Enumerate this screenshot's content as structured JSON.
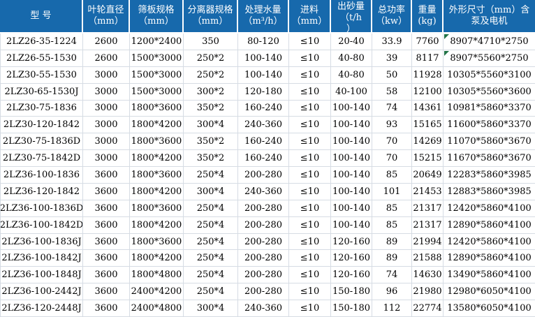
{
  "table": {
    "header_bg": "#1769AC",
    "header_text_color": "#FFFFFF",
    "gridline_color": "#D6DCE4",
    "note_marker_color": "#217346",
    "note_marker_rows": [
      0,
      1
    ],
    "columns": [
      {
        "id": "model",
        "label": "型  号",
        "unit": ""
      },
      {
        "id": "impeller",
        "label": "叶轮直径",
        "unit": "（mm）"
      },
      {
        "id": "screen",
        "label": "筛板规格",
        "unit": "（mm）"
      },
      {
        "id": "separator",
        "label": "分离器规格",
        "unit": "（mm）"
      },
      {
        "id": "water",
        "label": "处理水量",
        "unit": "（m³/h）"
      },
      {
        "id": "feed",
        "label": "进料",
        "unit": "（mm）"
      },
      {
        "id": "sand",
        "label": "出砂量",
        "unit": "（t/h",
        "unit2": "）"
      },
      {
        "id": "power",
        "label": "总功率",
        "unit": "（kw）"
      },
      {
        "id": "weight",
        "label": "重量",
        "unit": "(kg)"
      },
      {
        "id": "dims",
        "label": "外形尺寸（mm）含",
        "unit": "泵及电机"
      }
    ],
    "rows": [
      [
        "2LZ26-35-1224",
        "2600",
        "1200*2400",
        "350",
        "80-120",
        "≤10",
        "20-40",
        "33.9",
        "7760",
        "8907*4710*2750"
      ],
      [
        "2LZ26-55-1530",
        "2600",
        "1500*3000",
        "250*2",
        "100-140",
        "≤10",
        "40-80",
        "39",
        "8117",
        "8907*5560*2750"
      ],
      [
        "2LZ30-55-1530",
        "3000",
        "1500*3000",
        "250*2",
        "100-140",
        "≤10",
        "40-80",
        "50",
        "11928",
        "10305*5560*3100"
      ],
      [
        "2LZ30-65-1530J",
        "3000",
        "1500*3000",
        "300*2",
        "120-180",
        "≤10",
        "40-100",
        "58",
        "12100",
        "10305*5560*3600"
      ],
      [
        "2LZ30-75-1836",
        "3000",
        "1800*3600",
        "350*2",
        "160-240",
        "≤10",
        "100-140",
        "74",
        "14361",
        "10981*5860*3370"
      ],
      [
        "2LZ30-120-1842",
        "3000",
        "1800*4200",
        "300*4",
        "240-360",
        "≤10",
        "100-140",
        "93",
        "15165",
        "11600*5860*3370"
      ],
      [
        "2LZ30-75-1836D",
        "3000",
        "1800*3600",
        "350*2",
        "160-240",
        "≤10",
        "100-140",
        "70",
        "14269",
        "11070*5860*3670"
      ],
      [
        "2LZ30-75-1842D",
        "3000",
        "1800*4200",
        "350*2",
        "160-240",
        "≤10",
        "100-140",
        "70",
        "15215",
        "11670*5860*3670"
      ],
      [
        "2LZ36-100-1836",
        "3600",
        "1800*3600",
        "250*4",
        "200-280",
        "≤10",
        "100-140",
        "85",
        "20649",
        "12283*5860*3985"
      ],
      [
        "2LZ36-120-1842",
        "3600",
        "1800*4200",
        "300*4",
        "240-360",
        "≤10",
        "100-140",
        "101",
        "21453",
        "12883*5860*3985"
      ],
      [
        "2LZ36-100-1836D",
        "3600",
        "1800*3600",
        "250*4",
        "200-280",
        "≤10",
        "100-140",
        "85",
        "21317",
        "12420*5860*4100"
      ],
      [
        "2LZ36-100-1842D",
        "3600",
        "1800*4200",
        "250*4",
        "200-280",
        "≤10",
        "100-140",
        "85",
        "21317",
        "12890*5860*4100"
      ],
      [
        "2LZ36-100-1836J",
        "3600",
        "1800*3600",
        "250*4",
        "200-280",
        "≤10",
        "120-160",
        "89",
        "21994",
        "12420*5860*4100"
      ],
      [
        "2LZ36-100-1842J",
        "3600",
        "1800*4200",
        "250*4",
        "200-280",
        "≤10",
        "120-160",
        "89",
        "21588",
        "12890*5860*4100"
      ],
      [
        "2LZ36-100-1848J",
        "3600",
        "1800*4800",
        "250*4",
        "200-280",
        "≤10",
        "120-160",
        "74",
        "14630",
        "13490*5860*4100"
      ],
      [
        "2LZ36-100-2442J",
        "3600",
        "2400*4200",
        "250*4",
        "200-280",
        "≤10",
        "150-180",
        "96",
        "21980",
        "12980*6050*4100"
      ],
      [
        "2LZ36-120-2448J",
        "3600",
        "2400*4800",
        "300*4",
        "240-360",
        "≤10",
        "150-180",
        "112",
        "22774",
        "13580*6050*4100"
      ]
    ]
  }
}
